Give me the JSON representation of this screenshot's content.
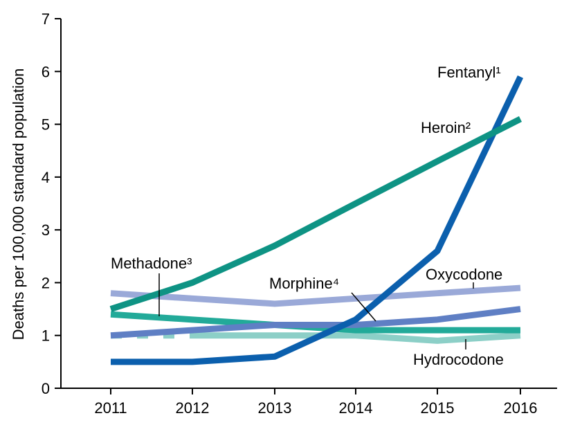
{
  "chart_data": {
    "type": "line",
    "title": "",
    "xlabel": "",
    "ylabel": "Deaths per 100,000 standard population",
    "ylim": [
      0,
      7
    ],
    "grid": false,
    "categories": [
      "2011",
      "2012",
      "2013",
      "2014",
      "2015",
      "2016"
    ],
    "y_ticks": [
      "0",
      "1",
      "2",
      "3",
      "4",
      "5",
      "6",
      "7"
    ],
    "series": [
      {
        "name": "Fentanyl¹",
        "color": "#0b5fad",
        "values": [
          0.5,
          0.5,
          0.6,
          1.3,
          2.6,
          5.9
        ]
      },
      {
        "name": "Heroin²",
        "color": "#0e9384",
        "values": [
          1.5,
          2.0,
          2.7,
          3.5,
          4.3,
          5.1
        ]
      },
      {
        "name": "Methadone³",
        "color": "#22aa99",
        "values": [
          1.4,
          1.3,
          1.2,
          1.1,
          1.1,
          1.1
        ]
      },
      {
        "name": "Morphine⁴",
        "color": "#5f7fc4",
        "values": [
          1.0,
          1.1,
          1.2,
          1.2,
          1.3,
          1.5
        ]
      },
      {
        "name": "Oxycodone",
        "color": "#9aa9d8",
        "values": [
          1.8,
          1.7,
          1.6,
          1.7,
          1.8,
          1.9
        ]
      },
      {
        "name": "Hydrocodone",
        "color": "#8ccfc7",
        "values": [
          1.0,
          1.0,
          1.0,
          1.0,
          0.9,
          1.0
        ]
      }
    ]
  }
}
